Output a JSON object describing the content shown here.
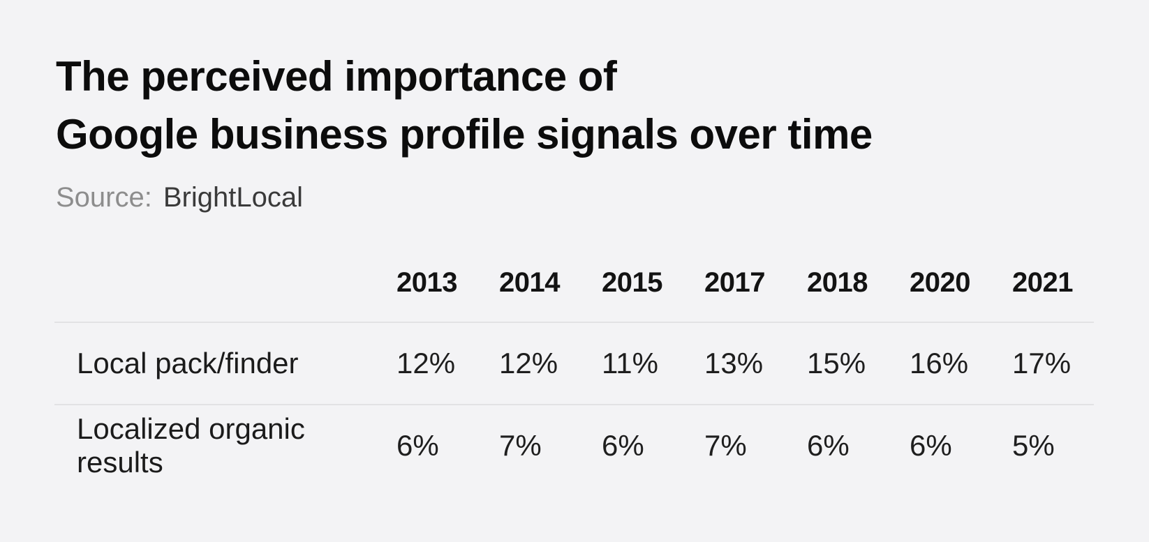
{
  "page": {
    "background_color": "#f3f3f5",
    "divider_color": "#e2e2e4"
  },
  "header": {
    "title_line1": "The perceived importance of",
    "title_line2": "Google business profile signals over time",
    "source_label": "Source:",
    "source_value": "BrightLocal"
  },
  "colors": {
    "title": "#0c0c0c",
    "source_label": "#8d8d8d",
    "source_value": "#3a3a3a",
    "table_text": "#1e1e1e"
  },
  "chart_data": {
    "type": "table",
    "title": "The perceived importance of Google business profile signals over time",
    "source": "BrightLocal",
    "columns": [
      "2013",
      "2014",
      "2015",
      "2017",
      "2018",
      "2020",
      "2021"
    ],
    "rows": [
      {
        "label": "Local pack/finder",
        "values": [
          "12%",
          "12%",
          "11%",
          "13%",
          "15%",
          "16%",
          "17%"
        ]
      },
      {
        "label": "Localized organic results",
        "values": [
          "6%",
          "7%",
          "6%",
          "7%",
          "6%",
          "6%",
          "5%"
        ]
      }
    ],
    "layout": {
      "value_alignment": "left",
      "row_dividers": true,
      "header_weight": "bold"
    }
  }
}
